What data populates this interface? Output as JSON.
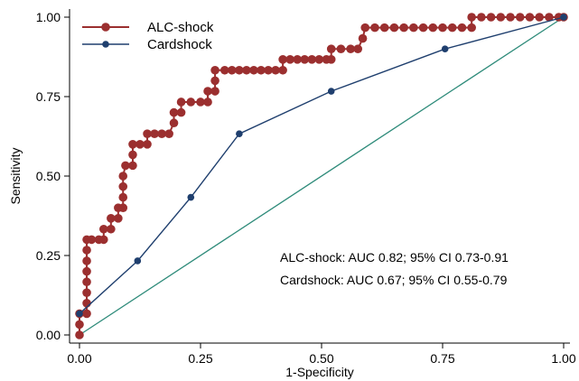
{
  "chart_data": {
    "type": "line",
    "xlabel": "1-Specificity",
    "ylabel": "Sensitivity",
    "xlim": [
      0,
      1
    ],
    "ylim": [
      0,
      1
    ],
    "x_ticks": [
      "0.00",
      "0.25",
      "0.50",
      "0.75",
      "1.00"
    ],
    "y_ticks": [
      "0.00",
      "0.25",
      "0.50",
      "0.75",
      "1.00"
    ],
    "grid": false,
    "legend_position": "top-left",
    "reference_line": {
      "x": [
        0,
        1
      ],
      "y": [
        0,
        1
      ],
      "color": "#2e8b7a"
    },
    "series": [
      {
        "name": "ALC-shock",
        "color": "#9b2f2f",
        "marker_size": "large",
        "x": [
          0,
          0,
          0,
          0.015,
          0.015,
          0.015,
          0.015,
          0.015,
          0.015,
          0.015,
          0.015,
          0.025,
          0.04,
          0.05,
          0.05,
          0.065,
          0.065,
          0.08,
          0.08,
          0.09,
          0.09,
          0.09,
          0.09,
          0.095,
          0.11,
          0.11,
          0.11,
          0.125,
          0.14,
          0.14,
          0.155,
          0.17,
          0.185,
          0.195,
          0.195,
          0.21,
          0.21,
          0.23,
          0.25,
          0.265,
          0.265,
          0.28,
          0.28,
          0.28,
          0.3,
          0.315,
          0.33,
          0.345,
          0.36,
          0.375,
          0.39,
          0.405,
          0.42,
          0.42,
          0.435,
          0.45,
          0.465,
          0.48,
          0.495,
          0.51,
          0.52,
          0.52,
          0.54,
          0.56,
          0.575,
          0.585,
          0.59,
          0.61,
          0.63,
          0.65,
          0.67,
          0.69,
          0.71,
          0.73,
          0.75,
          0.77,
          0.79,
          0.81,
          0.81,
          0.83,
          0.85,
          0.87,
          0.89,
          0.91,
          0.93,
          0.95,
          0.97,
          0.99,
          1.0
        ],
        "y": [
          0,
          0.033,
          0.067,
          0.067,
          0.1,
          0.133,
          0.167,
          0.2,
          0.233,
          0.267,
          0.3,
          0.3,
          0.3,
          0.3,
          0.333,
          0.333,
          0.367,
          0.367,
          0.4,
          0.4,
          0.433,
          0.467,
          0.5,
          0.533,
          0.533,
          0.567,
          0.6,
          0.6,
          0.6,
          0.633,
          0.633,
          0.633,
          0.633,
          0.667,
          0.7,
          0.7,
          0.733,
          0.733,
          0.733,
          0.733,
          0.767,
          0.767,
          0.8,
          0.833,
          0.833,
          0.833,
          0.833,
          0.833,
          0.833,
          0.833,
          0.833,
          0.833,
          0.833,
          0.867,
          0.867,
          0.867,
          0.867,
          0.867,
          0.867,
          0.867,
          0.867,
          0.9,
          0.9,
          0.9,
          0.9,
          0.933,
          0.967,
          0.967,
          0.967,
          0.967,
          0.967,
          0.967,
          0.967,
          0.967,
          0.967,
          0.967,
          0.967,
          0.967,
          1.0,
          1.0,
          1.0,
          1.0,
          1.0,
          1.0,
          1.0,
          1.0,
          1.0,
          1.0,
          1.0
        ]
      },
      {
        "name": "Cardshock",
        "color": "#1f3f6e",
        "marker_size": "small",
        "x": [
          0,
          0.12,
          0.23,
          0.33,
          0.52,
          0.755,
          1.0
        ],
        "y": [
          0.067,
          0.233,
          0.433,
          0.633,
          0.767,
          0.9,
          1.0
        ]
      }
    ],
    "annotations": [
      "ALC-shock: AUC 0.82; 95% CI 0.73-0.91",
      "Cardshock: AUC 0.67; 95% CI 0.55-0.79"
    ]
  }
}
